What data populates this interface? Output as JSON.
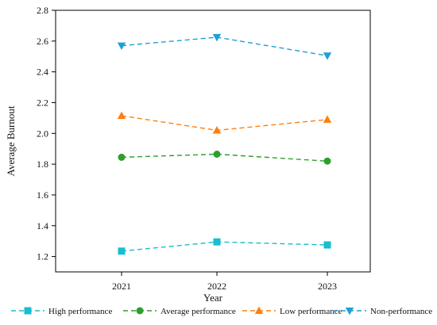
{
  "chart_data": {
    "type": "line",
    "xlabel": "Year",
    "ylabel": "Average Burnout",
    "categories": [
      "2021",
      "2022",
      "2023"
    ],
    "ylim": [
      1.1,
      2.8
    ],
    "yticks": [
      "1.2",
      "1.4",
      "1.6",
      "1.8",
      "2.0",
      "2.2",
      "2.4",
      "2.6",
      "2.8"
    ],
    "grid": false,
    "legend_position": "bottom",
    "series": [
      {
        "name": "High performance",
        "values": [
          1.235,
          1.295,
          1.275
        ],
        "color": "#17becf",
        "marker": "square",
        "line_style": "dashed"
      },
      {
        "name": "Average performance",
        "values": [
          1.845,
          1.865,
          1.82
        ],
        "color": "#2ca02c",
        "marker": "circle",
        "line_style": "dashed"
      },
      {
        "name": "Low performance",
        "values": [
          2.115,
          2.02,
          2.09
        ],
        "color": "#ff7f0e",
        "marker": "triangle-up",
        "line_style": "dashed"
      },
      {
        "name": "Non-performance",
        "values": [
          2.57,
          2.625,
          2.505
        ],
        "color": "#1f9fd6",
        "marker": "triangle-down",
        "line_style": "dashed"
      }
    ]
  }
}
